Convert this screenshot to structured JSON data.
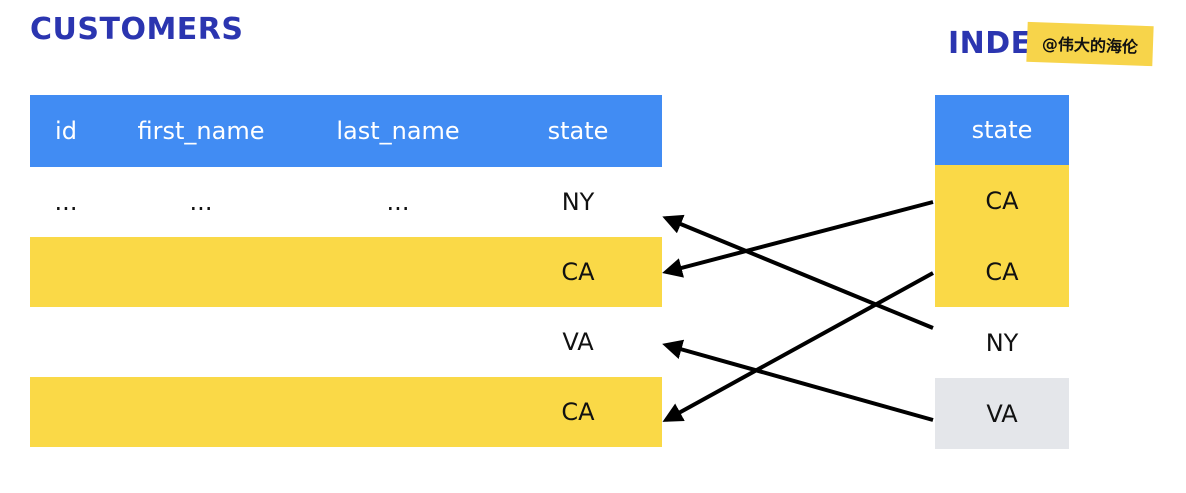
{
  "customers": {
    "title": "CUSTOMERS",
    "columns": [
      "id",
      "first_name",
      "last_name",
      "state"
    ],
    "rows": [
      {
        "id": "...",
        "first_name": "...",
        "last_name": "...",
        "state": "NY",
        "highlight": false
      },
      {
        "id": "",
        "first_name": "",
        "last_name": "",
        "state": "CA",
        "highlight": true
      },
      {
        "id": "",
        "first_name": "",
        "last_name": "",
        "state": "VA",
        "highlight": false
      },
      {
        "id": "",
        "first_name": "",
        "last_name": "",
        "state": "CA",
        "highlight": true
      }
    ]
  },
  "index": {
    "title": "INDEX",
    "column": "state",
    "rows": [
      "CA",
      "CA",
      "NY",
      "VA"
    ]
  },
  "watermark": {
    "text": "@伟大的海伦"
  },
  "colors": {
    "title": "#2b35b0",
    "header": "#418cf3",
    "highlight": "#fad947",
    "muted_row": "#e4e6ea",
    "arrow": "#000000"
  },
  "arrows": [
    {
      "from_index_row": 0,
      "to_customer_row": 1
    },
    {
      "from_index_row": 1,
      "to_customer_row": 3
    },
    {
      "from_index_row": 2,
      "to_customer_row": 0
    },
    {
      "from_index_row": 3,
      "to_customer_row": 2
    }
  ]
}
